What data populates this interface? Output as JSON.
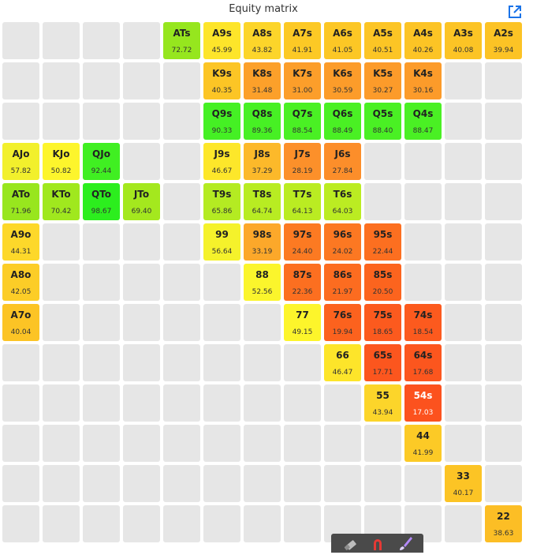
{
  "header": {
    "title": "Equity matrix",
    "link_icon": "external-link-icon",
    "link_color": "#1a73e8"
  },
  "matrix": {
    "empty_color": "#e6e6e6",
    "rows": [
      [
        null,
        null,
        null,
        null,
        {
          "hand": "ATs",
          "equity": "72.72",
          "color": "#96e61e"
        },
        {
          "hand": "A9s",
          "equity": "45.99",
          "color": "#fde52a"
        },
        {
          "hand": "A8s",
          "equity": "43.82",
          "color": "#fcd52a"
        },
        {
          "hand": "A7s",
          "equity": "41.91",
          "color": "#fcc925"
        },
        {
          "hand": "A6s",
          "equity": "41.05",
          "color": "#fcc725"
        },
        {
          "hand": "A5s",
          "equity": "40.51",
          "color": "#fcc525"
        },
        {
          "hand": "A4s",
          "equity": "40.26",
          "color": "#fcc425"
        },
        {
          "hand": "A3s",
          "equity": "40.08",
          "color": "#fcc425"
        },
        {
          "hand": "A2s",
          "equity": "39.94",
          "color": "#fcc325"
        }
      ],
      [
        null,
        null,
        null,
        null,
        null,
        {
          "hand": "K9s",
          "equity": "40.35",
          "color": "#fcc525"
        },
        {
          "hand": "K8s",
          "equity": "31.48",
          "color": "#fca02a"
        },
        {
          "hand": "K7s",
          "equity": "31.00",
          "color": "#fc9e2a"
        },
        {
          "hand": "K6s",
          "equity": "30.59",
          "color": "#fc9c2a"
        },
        {
          "hand": "K5s",
          "equity": "30.27",
          "color": "#fc9b2a"
        },
        {
          "hand": "K4s",
          "equity": "30.16",
          "color": "#fc9b2a"
        },
        null,
        null
      ],
      [
        null,
        null,
        null,
        null,
        null,
        {
          "hand": "Q9s",
          "equity": "90.33",
          "color": "#45f024"
        },
        {
          "hand": "Q8s",
          "equity": "89.36",
          "color": "#47f024"
        },
        {
          "hand": "Q7s",
          "equity": "88.54",
          "color": "#4af024"
        },
        {
          "hand": "Q6s",
          "equity": "88.49",
          "color": "#4af024"
        },
        {
          "hand": "Q5s",
          "equity": "88.40",
          "color": "#4af024"
        },
        {
          "hand": "Q4s",
          "equity": "88.47",
          "color": "#4af024"
        },
        null,
        null
      ],
      [
        {
          "hand": "AJo",
          "equity": "57.82",
          "color": "#f2f02c"
        },
        {
          "hand": "KJo",
          "equity": "50.82",
          "color": "#fdf52c"
        },
        {
          "hand": "QJo",
          "equity": "92.44",
          "color": "#40ef22"
        },
        null,
        null,
        {
          "hand": "J9s",
          "equity": "46.67",
          "color": "#fde72a"
        },
        {
          "hand": "J8s",
          "equity": "37.29",
          "color": "#fcb92a"
        },
        {
          "hand": "J7s",
          "equity": "28.19",
          "color": "#fc902a"
        },
        {
          "hand": "J6s",
          "equity": "27.84",
          "color": "#fc8e2a"
        },
        null,
        null,
        null,
        null
      ],
      [
        {
          "hand": "ATo",
          "equity": "71.96",
          "color": "#98e61e"
        },
        {
          "hand": "KTo",
          "equity": "70.42",
          "color": "#a0e81e"
        },
        {
          "hand": "QTo",
          "equity": "98.67",
          "color": "#2cee1e"
        },
        {
          "hand": "JTo",
          "equity": "69.40",
          "color": "#a4e81e"
        },
        null,
        {
          "hand": "T9s",
          "equity": "65.86",
          "color": "#b4eb22"
        },
        {
          "hand": "T8s",
          "equity": "64.74",
          "color": "#b8ec22"
        },
        {
          "hand": "T7s",
          "equity": "64.13",
          "color": "#baec22"
        },
        {
          "hand": "T6s",
          "equity": "64.03",
          "color": "#bbec22"
        },
        null,
        null,
        null,
        null
      ],
      [
        {
          "hand": "A9o",
          "equity": "44.31",
          "color": "#fdd82a"
        },
        null,
        null,
        null,
        null,
        {
          "hand": "99",
          "equity": "56.64",
          "color": "#f5f22b"
        },
        {
          "hand": "98s",
          "equity": "33.19",
          "color": "#fca82a"
        },
        {
          "hand": "97s",
          "equity": "24.40",
          "color": "#fc7a22"
        },
        {
          "hand": "96s",
          "equity": "24.02",
          "color": "#fc7822"
        },
        {
          "hand": "95s",
          "equity": "22.44",
          "color": "#fc6f20"
        },
        null,
        null,
        null
      ],
      [
        {
          "hand": "A8o",
          "equity": "42.05",
          "color": "#fccd27"
        },
        null,
        null,
        null,
        null,
        null,
        {
          "hand": "88",
          "equity": "52.56",
          "color": "#fbf52c"
        },
        {
          "hand": "87s",
          "equity": "22.36",
          "color": "#fc6f20"
        },
        {
          "hand": "86s",
          "equity": "21.97",
          "color": "#fc6c20"
        },
        {
          "hand": "85s",
          "equity": "20.50",
          "color": "#fc641e"
        },
        null,
        null,
        null
      ],
      [
        {
          "hand": "A7o",
          "equity": "40.04",
          "color": "#fcc425"
        },
        null,
        null,
        null,
        null,
        null,
        null,
        {
          "hand": "77",
          "equity": "49.15",
          "color": "#fdf52b"
        },
        {
          "hand": "76s",
          "equity": "19.94",
          "color": "#fc621e"
        },
        {
          "hand": "75s",
          "equity": "18.65",
          "color": "#fc5a1e"
        },
        {
          "hand": "74s",
          "equity": "18.54",
          "color": "#fc5a1e"
        },
        null,
        null
      ],
      [
        null,
        null,
        null,
        null,
        null,
        null,
        null,
        null,
        {
          "hand": "66",
          "equity": "46.47",
          "color": "#fde52a"
        },
        {
          "hand": "65s",
          "equity": "17.71",
          "color": "#fc561e"
        },
        {
          "hand": "64s",
          "equity": "17.68",
          "color": "#fc561e"
        },
        null,
        null
      ],
      [
        null,
        null,
        null,
        null,
        null,
        null,
        null,
        null,
        null,
        {
          "hand": "55",
          "equity": "43.94",
          "color": "#fcd52a"
        },
        {
          "hand": "54s",
          "equity": "17.03",
          "color": "#fc521e",
          "light": true
        },
        null,
        null
      ],
      [
        null,
        null,
        null,
        null,
        null,
        null,
        null,
        null,
        null,
        null,
        {
          "hand": "44",
          "equity": "41.99",
          "color": "#fcca26"
        },
        null,
        null
      ],
      [
        null,
        null,
        null,
        null,
        null,
        null,
        null,
        null,
        null,
        null,
        null,
        {
          "hand": "33",
          "equity": "40.17",
          "color": "#fcc425"
        },
        null
      ],
      [
        null,
        null,
        null,
        null,
        null,
        null,
        null,
        null,
        null,
        null,
        null,
        null,
        {
          "hand": "22",
          "equity": "38.63",
          "color": "#fcbe25"
        }
      ]
    ]
  },
  "toolbar": {
    "tools": [
      {
        "name": "eraser-icon",
        "color": "#bdbdbd"
      },
      {
        "name": "magnet-icon",
        "color": "#e53935"
      },
      {
        "name": "brush-icon",
        "color": "#b388ff"
      }
    ],
    "background": "#4a4a4a"
  }
}
